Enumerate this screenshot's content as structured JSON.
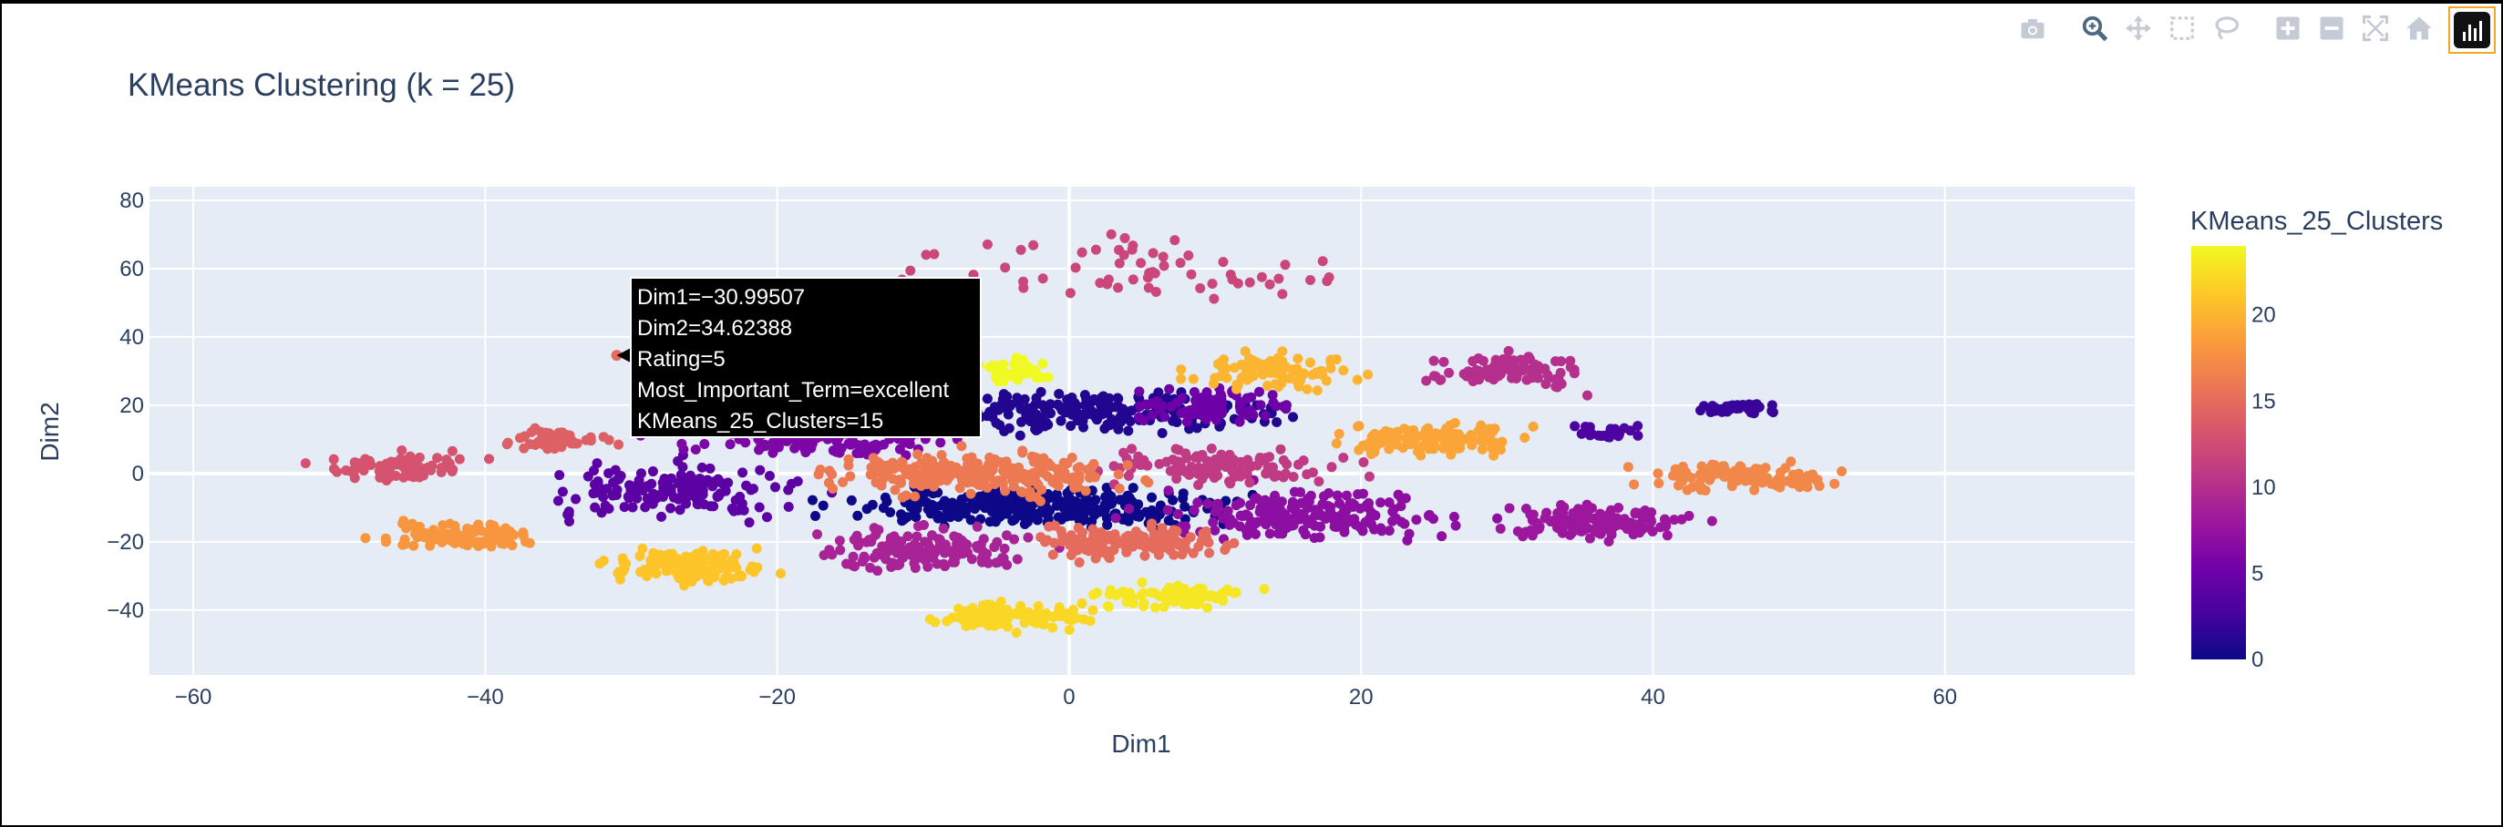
{
  "chart_data": {
    "type": "scatter",
    "title": "KMeans Clustering (k = 25)",
    "xlabel": "Dim1",
    "ylabel": "Dim2",
    "xlim": [
      -63,
      73
    ],
    "ylim": [
      -59,
      84
    ],
    "x_ticks": [
      -60,
      -40,
      -20,
      0,
      20,
      40,
      60
    ],
    "y_ticks": [
      -40,
      -20,
      0,
      20,
      40,
      60,
      80
    ],
    "x_tick_labels": [
      "−60",
      "−40",
      "−20",
      "0",
      "20",
      "40",
      "60"
    ],
    "y_tick_labels": [
      "−40",
      "−20",
      "0",
      "20",
      "40",
      "60",
      "80"
    ],
    "grid": true,
    "colorbar": {
      "title": "KMeans_25_Clusters",
      "range": [
        0,
        24
      ],
      "ticks": [
        0,
        5,
        10,
        15,
        20
      ],
      "tick_labels": [
        "0",
        "5",
        "10",
        "15",
        "20"
      ],
      "colorscale": "Plasma"
    },
    "clusters": [
      {
        "cluster": 0,
        "cx": -2,
        "cy": -10,
        "sx": 10,
        "sy": 4,
        "n": 320
      },
      {
        "cluster": 1,
        "cx": 2,
        "cy": 18,
        "sx": 9,
        "sy": 5,
        "n": 220
      },
      {
        "cluster": 2,
        "cx": 46,
        "cy": 19,
        "sx": 2.5,
        "sy": 1.5,
        "n": 40
      },
      {
        "cluster": 3,
        "cx": 37,
        "cy": 12,
        "sx": 2,
        "sy": 2,
        "n": 25
      },
      {
        "cluster": 4,
        "cx": -27,
        "cy": -5,
        "sx": 7,
        "sy": 6,
        "n": 160
      },
      {
        "cluster": 5,
        "cx": 10,
        "cy": 20,
        "sx": 4,
        "sy": 4,
        "n": 90
      },
      {
        "cluster": 6,
        "cx": -18,
        "cy": 10,
        "sx": 8,
        "sy": 4,
        "n": 120
      },
      {
        "cluster": 7,
        "cx": 16,
        "cy": -12,
        "sx": 8,
        "sy": 6,
        "n": 200
      },
      {
        "cluster": 8,
        "cx": 36,
        "cy": -14,
        "sx": 5,
        "sy": 4,
        "n": 140
      },
      {
        "cluster": 9,
        "cx": -10,
        "cy": -22,
        "sx": 6,
        "sy": 5,
        "n": 150
      },
      {
        "cluster": 10,
        "cx": 30,
        "cy": 30,
        "sx": 4,
        "sy": 4,
        "n": 90
      },
      {
        "cluster": 11,
        "cx": 10,
        "cy": 2,
        "sx": 6,
        "sy": 4,
        "n": 120
      },
      {
        "cluster": 12,
        "cx": 5,
        "cy": 60,
        "sx": 12,
        "sy": 8,
        "n": 60
      },
      {
        "cluster": 13,
        "cx": -46,
        "cy": 2,
        "sx": 4,
        "sy": 3,
        "n": 80
      },
      {
        "cluster": 14,
        "cx": -35,
        "cy": 10,
        "sx": 3,
        "sy": 3,
        "n": 50
      },
      {
        "cluster": 15,
        "cx": 4,
        "cy": -20,
        "sx": 5,
        "sy": 4,
        "n": 140
      },
      {
        "cluster": 16,
        "cx": -6,
        "cy": 0,
        "sx": 8,
        "sy": 5,
        "n": 240
      },
      {
        "cluster": 17,
        "cx": 46,
        "cy": -1,
        "sx": 5,
        "sy": 3,
        "n": 120
      },
      {
        "cluster": 18,
        "cx": -42,
        "cy": -18,
        "sx": 4,
        "sy": 3,
        "n": 90
      },
      {
        "cluster": 19,
        "cx": 25,
        "cy": 10,
        "sx": 5,
        "sy": 4,
        "n": 110
      },
      {
        "cluster": 20,
        "cx": 14,
        "cy": 30,
        "sx": 4,
        "sy": 4,
        "n": 90
      },
      {
        "cluster": 21,
        "cx": -26,
        "cy": -27,
        "sx": 5,
        "sy": 4,
        "n": 120
      },
      {
        "cluster": 22,
        "cx": -4,
        "cy": -42,
        "sx": 4,
        "sy": 3,
        "n": 110
      },
      {
        "cluster": 23,
        "cx": 7,
        "cy": -36,
        "sx": 4,
        "sy": 3,
        "n": 90
      },
      {
        "cluster": 24,
        "cx": -4,
        "cy": 30,
        "sx": 2.5,
        "sy": 3,
        "n": 45
      }
    ],
    "hover": {
      "lines": [
        "Dim1=−30.99507",
        "Dim2=34.62388",
        "Rating=5",
        "Most_Important_Term=excellent",
        "KMeans_25_Clusters=15"
      ],
      "point": {
        "x": -30.99507,
        "y": 34.62388
      }
    }
  },
  "modebar": {
    "buttons": [
      "camera-icon",
      "zoom-icon",
      "pan-icon",
      "box-select-icon",
      "lasso-select-icon",
      "zoom-in-icon",
      "zoom-out-icon",
      "autoscale-icon",
      "reset-axes-icon"
    ],
    "active": "zoom-icon",
    "logo": "plotly-logo-icon"
  },
  "colors": {
    "plot_bg": "#e5ecf6",
    "grid": "#ffffff",
    "text": "#2a3f5f",
    "modebar_icon": "#c4cbd4",
    "modebar_active": "#506784",
    "hover_bg": "#000000"
  }
}
